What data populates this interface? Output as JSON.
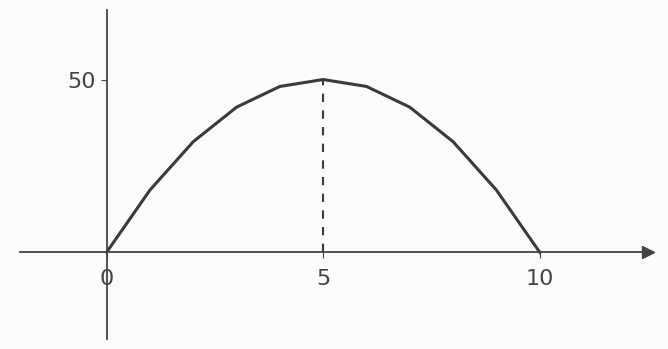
{
  "chart_data": {
    "type": "line",
    "x": [
      0,
      1,
      2,
      3,
      4,
      5,
      6,
      7,
      8,
      9,
      10
    ],
    "values": [
      0,
      18,
      32,
      42,
      48,
      50,
      48,
      42,
      32,
      18,
      0
    ],
    "color": "#3a3a3a",
    "xlim": [
      -2,
      12.5
    ],
    "ylim": [
      -25,
      70
    ],
    "xticks": [
      0,
      5,
      10
    ],
    "yticks": [
      50
    ],
    "grid": false
  }
}
